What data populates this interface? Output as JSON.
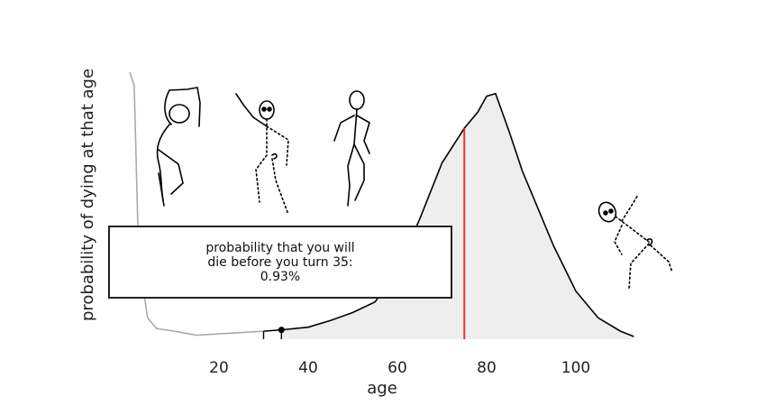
{
  "chart_data": {
    "type": "area",
    "title": "",
    "xlabel": "age",
    "ylabel": "probability of dying at that age",
    "xlim": [
      0,
      115
    ],
    "x_ticks": [
      20,
      40,
      60,
      80,
      100
    ],
    "y_ticks_shown": false,
    "grid": false,
    "series": [
      {
        "style": "line",
        "x": [
          0,
          1,
          2,
          4,
          6,
          10,
          15,
          20,
          25,
          30,
          34,
          40,
          45,
          50,
          55,
          60,
          65,
          70,
          75,
          78,
          80,
          82,
          85,
          88,
          90,
          95,
          100,
          105,
          110,
          113
        ],
        "y": [
          1.0,
          0.95,
          0.3,
          0.08,
          0.04,
          0.03,
          0.015,
          0.02,
          0.025,
          0.03,
          0.035,
          0.045,
          0.07,
          0.1,
          0.14,
          0.26,
          0.45,
          0.66,
          0.79,
          0.85,
          0.91,
          0.92,
          0.78,
          0.63,
          0.55,
          0.35,
          0.18,
          0.08,
          0.03,
          0.01
        ],
        "line_color": "#000000",
        "early_segment_color": "#aaaaaa",
        "fill_color": "#eeeeee",
        "shaded_from_age": 34
      }
    ],
    "marker": {
      "age": 34,
      "style": "dot"
    },
    "expected_age_line": {
      "age": 75,
      "color": "#d9382b"
    }
  },
  "callout": {
    "line1": "probability that you will",
    "line2": "die before you turn 35:",
    "line3": "0.93%"
  }
}
